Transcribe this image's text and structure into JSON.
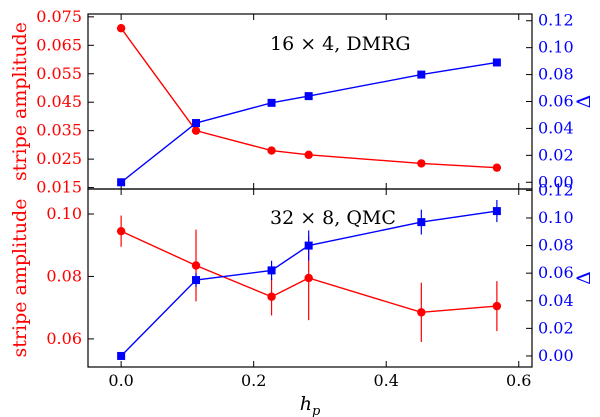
{
  "chart_data": [
    {
      "type": "line",
      "annotation": "16 × 4, DMRG",
      "left_axis": {
        "label": "stripe amplitude",
        "color": "#ff0000",
        "ylim": [
          0.0145,
          0.076
        ],
        "ticks": [
          0.015,
          0.025,
          0.035,
          0.045,
          0.055,
          0.065,
          0.075
        ],
        "tick_labels": [
          "0.015",
          "0.025",
          "0.035",
          "0.045",
          "0.055",
          "0.065",
          "0.075"
        ]
      },
      "right_axis": {
        "label": "Δ",
        "color": "#0000ff",
        "ylim": [
          -0.005,
          0.125
        ],
        "ticks": [
          0.0,
          0.02,
          0.04,
          0.06,
          0.08,
          0.1,
          0.12
        ],
        "tick_labels": [
          "0.00",
          "0.02",
          "0.04",
          "0.06",
          "0.08",
          "0.10",
          "0.12"
        ]
      },
      "series": [
        {
          "axis": "left",
          "marker": "circle",
          "color": "#ff0000",
          "x": [
            0.0,
            0.113,
            0.227,
            0.283,
            0.453,
            0.567
          ],
          "y": [
            0.071,
            0.035,
            0.028,
            0.0265,
            0.0235,
            0.022
          ]
        },
        {
          "axis": "right",
          "marker": "square",
          "color": "#0000ff",
          "x": [
            0.0,
            0.113,
            0.227,
            0.283,
            0.453,
            0.567
          ],
          "y": [
            0.0,
            0.044,
            0.059,
            0.064,
            0.08,
            0.089
          ]
        }
      ]
    },
    {
      "type": "line",
      "annotation": "32 × 8, QMC",
      "left_axis": {
        "label": "stripe amplitude",
        "color": "#ff0000",
        "ylim": [
          0.051,
          0.108
        ],
        "ticks": [
          0.06,
          0.08,
          0.1
        ],
        "tick_labels": [
          "0.06",
          "0.08",
          "0.10"
        ]
      },
      "right_axis": {
        "label": "Δ",
        "color": "#0000ff",
        "ylim": [
          -0.008,
          0.121
        ],
        "ticks": [
          0.0,
          0.02,
          0.04,
          0.06,
          0.08,
          0.1,
          0.12
        ],
        "tick_labels": [
          "0.00",
          "0.02",
          "0.04",
          "0.06",
          "0.08",
          "0.10",
          "0.12"
        ]
      },
      "series": [
        {
          "axis": "left",
          "marker": "circle",
          "color": "#ff0000",
          "x": [
            0.0,
            0.113,
            0.227,
            0.283,
            0.453,
            0.567
          ],
          "y": [
            0.0945,
            0.0835,
            0.0735,
            0.0795,
            0.0685,
            0.0705
          ],
          "err": [
            0.005,
            0.0115,
            0.006,
            0.0135,
            0.0095,
            0.008
          ]
        },
        {
          "axis": "right",
          "marker": "square",
          "color": "#0000ff",
          "x": [
            0.0,
            0.113,
            0.227,
            0.283,
            0.453,
            0.567
          ],
          "y": [
            0.0,
            0.055,
            0.062,
            0.08,
            0.097,
            0.105
          ],
          "err": [
            0.0,
            0.005,
            0.007,
            0.011,
            0.009,
            0.008
          ]
        }
      ]
    }
  ],
  "x_axis": {
    "label": "h_p",
    "label_main": "h",
    "label_sub": "p",
    "xlim": [
      -0.05,
      0.62
    ],
    "ticks": [
      0.0,
      0.2,
      0.4,
      0.6
    ],
    "tick_labels": [
      "0.0",
      "0.2",
      "0.4",
      "0.6"
    ]
  }
}
